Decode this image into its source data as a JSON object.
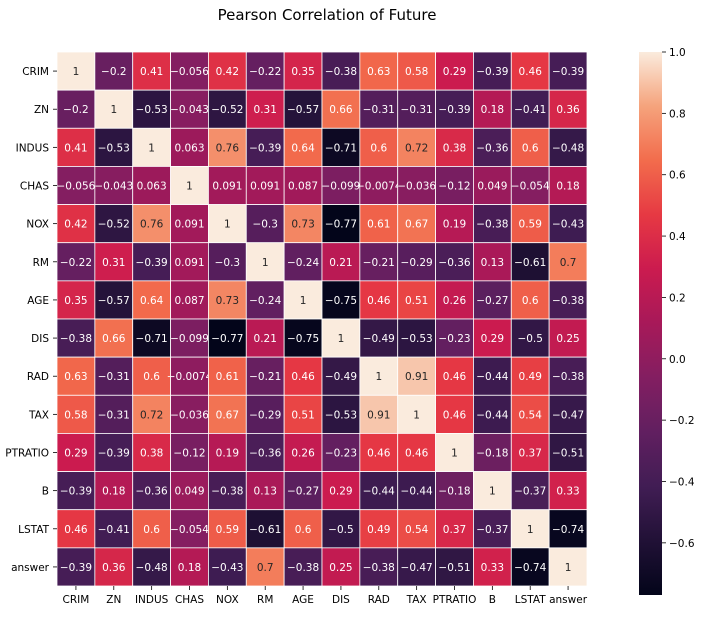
{
  "chart_data": {
    "type": "heatmap",
    "title": "Pearson Correlation of Future",
    "labels": [
      "CRIM",
      "ZN",
      "INDUS",
      "CHAS",
      "NOX",
      "RM",
      "AGE",
      "DIS",
      "RAD",
      "TAX",
      "PTRATIO",
      "B",
      "LSTAT",
      "answer"
    ],
    "values": [
      [
        1,
        -0.2,
        0.41,
        -0.056,
        0.42,
        -0.22,
        0.35,
        -0.38,
        0.63,
        0.58,
        0.29,
        -0.39,
        0.46,
        -0.39
      ],
      [
        -0.2,
        1,
        -0.53,
        -0.043,
        -0.52,
        0.31,
        -0.57,
        0.66,
        -0.31,
        -0.31,
        -0.39,
        0.18,
        -0.41,
        0.36
      ],
      [
        0.41,
        -0.53,
        1,
        0.063,
        0.76,
        -0.39,
        0.64,
        -0.71,
        0.6,
        0.72,
        0.38,
        -0.36,
        0.6,
        -0.48
      ],
      [
        -0.056,
        -0.043,
        0.063,
        1,
        0.091,
        0.091,
        0.087,
        -0.099,
        -0.0074,
        -0.036,
        -0.12,
        0.049,
        -0.054,
        0.18
      ],
      [
        0.42,
        -0.52,
        0.76,
        0.091,
        1,
        -0.3,
        0.73,
        -0.77,
        0.61,
        0.67,
        0.19,
        -0.38,
        0.59,
        -0.43
      ],
      [
        -0.22,
        0.31,
        -0.39,
        0.091,
        -0.3,
        1,
        -0.24,
        0.21,
        -0.21,
        -0.29,
        -0.36,
        0.13,
        -0.61,
        0.7
      ],
      [
        0.35,
        -0.57,
        0.64,
        0.087,
        0.73,
        -0.24,
        1,
        -0.75,
        0.46,
        0.51,
        0.26,
        -0.27,
        0.6,
        -0.38
      ],
      [
        -0.38,
        0.66,
        -0.71,
        -0.099,
        -0.77,
        0.21,
        -0.75,
        1,
        -0.49,
        -0.53,
        -0.23,
        0.29,
        -0.5,
        0.25
      ],
      [
        0.63,
        -0.31,
        0.6,
        -0.0074,
        0.61,
        -0.21,
        0.46,
        -0.49,
        1,
        0.91,
        0.46,
        -0.44,
        0.49,
        -0.38
      ],
      [
        0.58,
        -0.31,
        0.72,
        -0.036,
        0.67,
        -0.29,
        0.51,
        -0.53,
        0.91,
        1,
        0.46,
        -0.44,
        0.54,
        -0.47
      ],
      [
        0.29,
        -0.39,
        0.38,
        -0.12,
        0.19,
        -0.36,
        0.26,
        -0.23,
        0.46,
        0.46,
        1,
        -0.18,
        0.37,
        -0.51
      ],
      [
        -0.39,
        0.18,
        -0.36,
        0.049,
        -0.38,
        0.13,
        -0.27,
        0.29,
        -0.44,
        -0.44,
        -0.18,
        1,
        -0.37,
        0.33
      ],
      [
        0.46,
        -0.41,
        0.6,
        -0.054,
        0.59,
        -0.61,
        0.6,
        -0.5,
        0.49,
        0.54,
        0.37,
        -0.37,
        1,
        -0.74
      ],
      [
        -0.39,
        0.36,
        -0.48,
        0.18,
        -0.43,
        0.7,
        -0.38,
        0.25,
        -0.38,
        -0.47,
        -0.51,
        0.33,
        -0.74,
        1
      ]
    ],
    "vmin": -0.77,
    "vmax": 1.0,
    "colormap": "rocket",
    "colorbar_ticks": [
      "1.0",
      "0.8",
      "0.6",
      "0.4",
      "0.2",
      "0.0",
      "−0.2",
      "−0.4",
      "−0.6"
    ],
    "colorbar_tick_values": [
      1.0,
      0.8,
      0.6,
      0.4,
      0.2,
      0.0,
      -0.2,
      -0.4,
      -0.6
    ],
    "annotations": true,
    "linecolor": "#ffffff",
    "xlabel": "",
    "ylabel": ""
  }
}
